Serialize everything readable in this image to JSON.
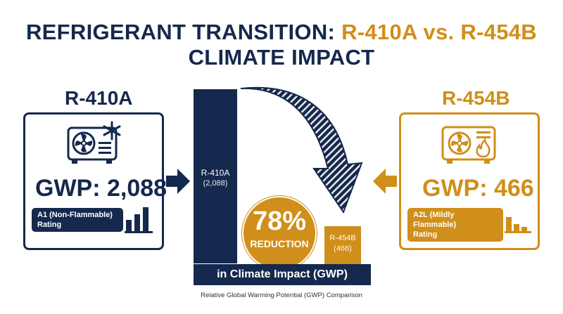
{
  "title": {
    "line1_prefix": "REFRIGERANT TRANSITION: ",
    "line1_highlight": "R-410A vs. R-454B",
    "line2": "CLIMATE IMPACT"
  },
  "left": {
    "name": "R-410A",
    "gwp_label": "GWP: 2,088",
    "rating_line1": "A1 (Non-Flammable)",
    "rating_line2": "Rating"
  },
  "right": {
    "name": "R-454B",
    "gwp_label": "GWP: 466",
    "rating_line1": "A2L (Mildly Flammable)",
    "rating_line2": "Rating"
  },
  "comparison": {
    "bar1_name": "R-410A",
    "bar1_value": "(2,088)",
    "bar2_name": "R-454B",
    "bar2_value": "(466)",
    "reduction_percent": "78%",
    "reduction_label": "REDUCTION",
    "banner": "in Climate Impact (GWP)",
    "caption": "Relative Global Warming Potential (GWP) Comparison"
  },
  "colors": {
    "navy": "#15284d",
    "gold": "#d08e1a"
  }
}
